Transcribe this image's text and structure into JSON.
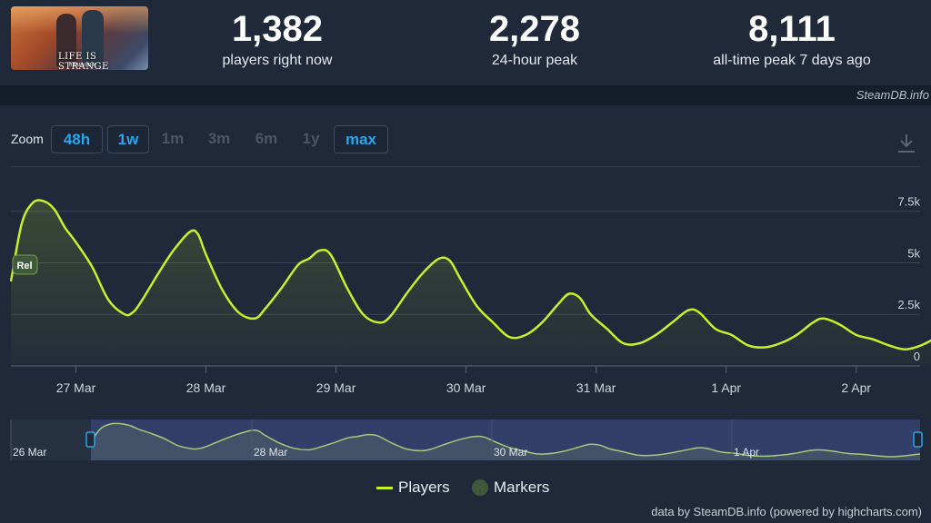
{
  "header": {
    "game_logo_text": "LIFE IS STRANGE",
    "game_logo_sub": "REUNION",
    "stats": [
      {
        "value": "1,382",
        "label": "players right now"
      },
      {
        "value": "2,278",
        "label": "24-hour peak"
      },
      {
        "value": "8,111",
        "label": "all-time peak 7 days ago"
      }
    ]
  },
  "source_label": "SteamDB.info",
  "zoom": {
    "label": "Zoom",
    "options": [
      {
        "label": "48h",
        "active": true
      },
      {
        "label": "1w",
        "active": true
      },
      {
        "label": "1m",
        "active": false
      },
      {
        "label": "3m",
        "active": false
      },
      {
        "label": "6m",
        "active": false
      },
      {
        "label": "1y",
        "active": false
      },
      {
        "label": "max",
        "active": true
      }
    ]
  },
  "chart_data": {
    "type": "area",
    "title": "",
    "xlabel": "",
    "ylabel": "",
    "ylim": [
      0,
      8500
    ],
    "yticks": [
      0,
      2500,
      5000,
      7500
    ],
    "ytick_labels": [
      "0",
      "2.5k",
      "5k",
      "7.5k"
    ],
    "x_start": "2025-03-26T12:00",
    "xtick_labels": [
      "27 Mar",
      "28 Mar",
      "29 Mar",
      "30 Mar",
      "31 Mar",
      "1 Apr",
      "2 Apr"
    ],
    "series": [
      {
        "name": "Players",
        "color": "#c8f02a",
        "x": [
          "2025-03-26T12:00",
          "2025-03-26T14:00",
          "2025-03-26T16:00",
          "2025-03-26T18:00",
          "2025-03-26T20:00",
          "2025-03-26T22:00",
          "2025-03-27T00:00",
          "2025-03-27T03:00",
          "2025-03-27T06:00",
          "2025-03-27T09:00",
          "2025-03-27T10:30",
          "2025-03-27T12:00",
          "2025-03-27T15:00",
          "2025-03-27T18:00",
          "2025-03-27T21:00",
          "2025-03-27T22:30",
          "2025-03-28T00:00",
          "2025-03-28T03:00",
          "2025-03-28T06:00",
          "2025-03-28T09:00",
          "2025-03-28T11:00",
          "2025-03-28T14:00",
          "2025-03-28T17:00",
          "2025-03-28T19:00",
          "2025-03-28T21:00",
          "2025-03-28T23:00",
          "2025-03-29T02:00",
          "2025-03-29T05:00",
          "2025-03-29T08:00",
          "2025-03-29T10:00",
          "2025-03-29T13:00",
          "2025-03-29T16:00",
          "2025-03-29T19:00",
          "2025-03-29T21:00",
          "2025-03-29T23:00",
          "2025-03-30T02:00",
          "2025-03-30T05:00",
          "2025-03-30T08:00",
          "2025-03-30T11:00",
          "2025-03-30T14:00",
          "2025-03-30T17:00",
          "2025-03-30T19:00",
          "2025-03-30T21:00",
          "2025-03-30T23:00",
          "2025-03-31T02:00",
          "2025-03-31T05:00",
          "2025-03-31T08:00",
          "2025-03-31T11:00",
          "2025-03-31T14:00",
          "2025-03-31T17:00",
          "2025-03-31T19:00",
          "2025-03-31T22:00",
          "2025-04-01T01:00",
          "2025-04-01T04:00",
          "2025-04-01T07:00",
          "2025-04-01T10:00",
          "2025-04-01T13:00",
          "2025-04-01T16:00",
          "2025-04-01T18:00",
          "2025-04-01T21:00",
          "2025-04-02T00:00",
          "2025-04-02T03:00",
          "2025-04-02T06:00",
          "2025-04-02T09:00",
          "2025-04-02T12:00",
          "2025-04-02T15:00"
        ],
        "values": [
          4100,
          6900,
          7900,
          8000,
          7600,
          6700,
          6000,
          4800,
          3200,
          2500,
          2600,
          3100,
          4400,
          5600,
          6500,
          6400,
          5400,
          3700,
          2600,
          2300,
          2800,
          3800,
          4900,
          5200,
          5600,
          5400,
          3800,
          2500,
          2100,
          2400,
          3500,
          4500,
          5200,
          5100,
          4200,
          2900,
          2100,
          1400,
          1500,
          2100,
          3000,
          3500,
          3300,
          2500,
          1800,
          1100,
          1100,
          1500,
          2100,
          2700,
          2600,
          1800,
          1500,
          1000,
          900,
          1100,
          1500,
          2100,
          2300,
          2000,
          1500,
          1300,
          1000,
          800,
          1000,
          1400
        ]
      }
    ],
    "markers": [
      {
        "label": "Rel",
        "x": "2025-03-26T12:00"
      }
    ],
    "navigator": {
      "xtick_labels": [
        "26 Mar",
        "28 Mar",
        "30 Mar",
        "1 Apr"
      ]
    },
    "legend": [
      "Players",
      "Markers"
    ],
    "legend_position": "bottom-center",
    "grid": true
  },
  "credit": "data by SteamDB.info (powered by highcharts.com)"
}
